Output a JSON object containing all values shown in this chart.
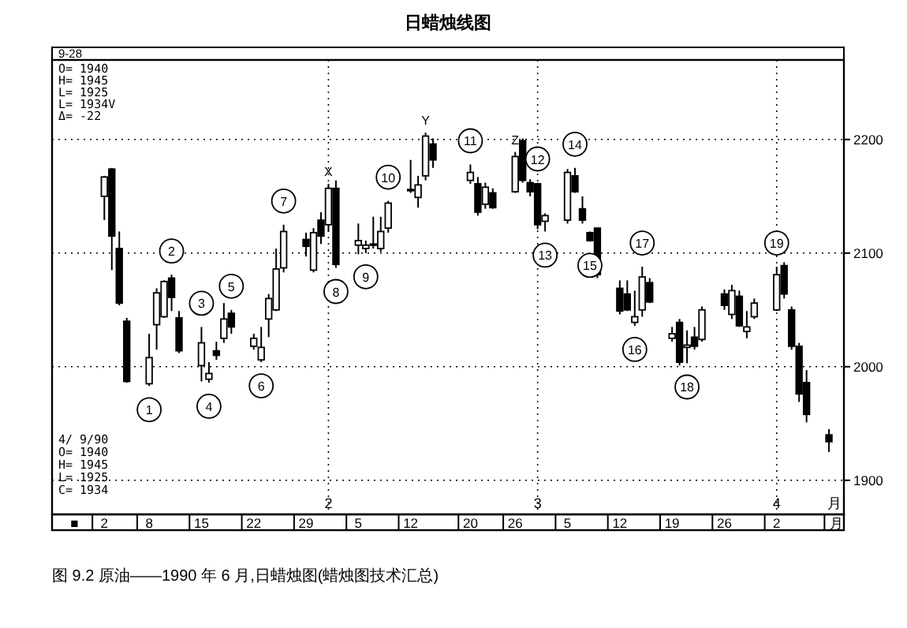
{
  "chart_data": {
    "type": "candlestick",
    "title": "日蜡烛线图",
    "xlabel": "月",
    "x": [
      "1990-01-02",
      "1990-01-03",
      "1990-01-04",
      "1990-01-05",
      "1990-01-08",
      "1990-01-09",
      "1990-01-10",
      "1990-01-11",
      "1990-01-12",
      "1990-01-15",
      "1990-01-16",
      "1990-01-17",
      "1990-01-18",
      "1990-01-19",
      "1990-01-22",
      "1990-01-23",
      "1990-01-24",
      "1990-01-25",
      "1990-01-26",
      "1990-01-29",
      "1990-01-30",
      "1990-01-31",
      "1990-02-01",
      "1990-02-02",
      "1990-02-05",
      "1990-02-06",
      "1990-02-07",
      "1990-02-08",
      "1990-02-09",
      "1990-02-12",
      "1990-02-13",
      "1990-02-14",
      "1990-02-15",
      "1990-02-20",
      "1990-02-21",
      "1990-02-22",
      "1990-02-23",
      "1990-02-26",
      "1990-02-27",
      "1990-02-28",
      "1990-03-01",
      "1990-03-02",
      "1990-03-05",
      "1990-03-06",
      "1990-03-07",
      "1990-03-08",
      "1990-03-09",
      "1990-03-12",
      "1990-03-13",
      "1990-03-14",
      "1990-03-15",
      "1990-03-16",
      "1990-03-19",
      "1990-03-20",
      "1990-03-21",
      "1990-03-22",
      "1990-03-23",
      "1990-03-26",
      "1990-03-27",
      "1990-03-28",
      "1990-03-29",
      "1990-03-30",
      "1990-04-02",
      "1990-04-03",
      "1990-04-04",
      "1990-04-05",
      "1990-04-06",
      "1990-04-09"
    ],
    "ohlc": [
      [
        2150,
        2168,
        2129,
        2167
      ],
      [
        2174,
        2175,
        2085,
        2115
      ],
      [
        2104,
        2119,
        2054,
        2056
      ],
      [
        2040,
        2043,
        1986,
        1987
      ],
      [
        1985,
        2029,
        1983,
        2008
      ],
      [
        2037,
        2069,
        2015,
        2065
      ],
      [
        2044,
        2076,
        2043,
        2075
      ],
      [
        2078,
        2081,
        2049,
        2061
      ],
      [
        2043,
        2049,
        2012,
        2014
      ],
      [
        2001,
        2035,
        1987,
        2021
      ],
      [
        1989,
        2004,
        1986,
        1994
      ],
      [
        2014,
        2022,
        2006,
        2010
      ],
      [
        2025,
        2056,
        2021,
        2042
      ],
      [
        2047,
        2050,
        2029,
        2035
      ],
      [
        2018,
        2029,
        2015,
        2025
      ],
      [
        2006,
        2035,
        2004,
        2017
      ],
      [
        2042,
        2064,
        2026,
        2060
      ],
      [
        2050,
        2104,
        2049,
        2086
      ],
      [
        2087,
        2125,
        2083,
        2119
      ],
      [
        2112,
        2118,
        2097,
        2106
      ],
      [
        2085,
        2122,
        2083,
        2118
      ],
      [
        2129,
        2136,
        2108,
        2115
      ],
      [
        2125,
        2161,
        2119,
        2157
      ],
      [
        2157,
        2164,
        2087,
        2090
      ],
      [
        2107,
        2126,
        2099,
        2111
      ],
      [
        2104,
        2111,
        2100,
        2107
      ],
      [
        2107,
        2132,
        2104,
        2108
      ],
      [
        2104,
        2132,
        2101,
        2119
      ],
      [
        2122,
        2146,
        2118,
        2144
      ],
      [
        2155,
        2182,
        2153,
        2156
      ],
      [
        2149,
        2168,
        2140,
        2160
      ],
      [
        2168,
        2206,
        2164,
        2203
      ],
      [
        2196,
        2201,
        2175,
        2182
      ],
      [
        2164,
        2178,
        2161,
        2171
      ],
      [
        2161,
        2167,
        2133,
        2136
      ],
      [
        2143,
        2162,
        2139,
        2158
      ],
      [
        2153,
        2157,
        2139,
        2140
      ],
      [
        2154,
        2189,
        2153,
        2185
      ],
      [
        2199,
        2201,
        2162,
        2164
      ],
      [
        2162,
        2165,
        2150,
        2154
      ],
      [
        2161,
        2162,
        2121,
        2125
      ],
      [
        2128,
        2135,
        2119,
        2133
      ],
      [
        2129,
        2174,
        2126,
        2171
      ],
      [
        2168,
        2175,
        2153,
        2154
      ],
      [
        2139,
        2150,
        2126,
        2129
      ],
      [
        2118,
        2119,
        2110,
        2111
      ],
      [
        2122,
        2122,
        2078,
        2081
      ],
      [
        2069,
        2076,
        2046,
        2049
      ],
      [
        2064,
        2076,
        2049,
        2050
      ],
      [
        2039,
        2067,
        2036,
        2044
      ],
      [
        2050,
        2088,
        2044,
        2079
      ],
      [
        2074,
        2078,
        2056,
        2057
      ],
      [
        2025,
        2035,
        2022,
        2029
      ],
      [
        2039,
        2042,
        2001,
        2004
      ],
      [
        2017,
        2032,
        2003,
        2019
      ],
      [
        2026,
        2035,
        2015,
        2018
      ],
      [
        2024,
        2053,
        2022,
        2050
      ],
      [
        2064,
        2068,
        2050,
        2054
      ],
      [
        2046,
        2072,
        2042,
        2067
      ],
      [
        2062,
        2067,
        2035,
        2036
      ],
      [
        2031,
        2049,
        2025,
        2035
      ],
      [
        2044,
        2060,
        2042,
        2056
      ],
      [
        2050,
        2088,
        2049,
        2081
      ],
      [
        2089,
        2092,
        2060,
        2064
      ],
      [
        2050,
        2053,
        2015,
        2018
      ],
      [
        2018,
        2021,
        1969,
        1976
      ],
      [
        1986,
        1997,
        1951,
        1958
      ],
      [
        1940,
        1945,
        1925,
        1934
      ]
    ],
    "xlim": [
      "1989-12-26",
      "1990-04-11"
    ],
    "xticks": [
      {
        "value": "1989-12-29",
        "label": "■"
      },
      {
        "value": "1990-01-02",
        "label": "2"
      },
      {
        "value": "1990-01-08",
        "label": "8"
      },
      {
        "value": "1990-01-15",
        "label": "15"
      },
      {
        "value": "1990-01-22",
        "label": "22"
      },
      {
        "value": "1990-01-29",
        "label": "29"
      },
      {
        "value": "1990-02-05",
        "label": "5"
      },
      {
        "value": "1990-02-12",
        "label": "12"
      },
      {
        "value": "1990-02-20",
        "label": "20"
      },
      {
        "value": "1990-02-26",
        "label": "26"
      },
      {
        "value": "1990-03-05",
        "label": "5"
      },
      {
        "value": "1990-03-12",
        "label": "12"
      },
      {
        "value": "1990-03-19",
        "label": "19"
      },
      {
        "value": "1990-03-26",
        "label": "26"
      },
      {
        "value": "1990-04-02",
        "label": "2"
      },
      {
        "value": "1990-04-10",
        "label": "月"
      }
    ],
    "ylim": [
      1870,
      2270
    ],
    "yticks": [
      1900,
      2000,
      2100,
      2200
    ],
    "grid": "y",
    "ref_lines": [
      {
        "axis": "x",
        "value": "1990-02-01",
        "label": "2",
        "line_style": "dotted"
      },
      {
        "axis": "x",
        "value": "1990-03-01",
        "label": "3",
        "line_style": "dotted"
      },
      {
        "axis": "x",
        "value": "1990-04-02",
        "label": "4",
        "line_style": "dotted"
      }
    ],
    "annotations": [
      "9-28",
      "O= 1940",
      "H= 1945",
      "L= 1925",
      "L= 1934V",
      "Δ= -22",
      "4/ 9/90",
      "O= 1940",
      "H= 1945",
      "L= 1925",
      "C= 1934",
      "图 9.2  原油——1990 年 6 月,日蜡烛图(蜡烛图技术汇总)",
      {
        "text": "1",
        "x": "1990-01-08",
        "y": 1983
      },
      {
        "text": "2",
        "x": "1990-01-11",
        "y": 2081
      },
      {
        "text": "3",
        "x": "1990-01-15",
        "y": 2035
      },
      {
        "text": "4",
        "x": "1990-01-16",
        "y": 1986
      },
      {
        "text": "5",
        "x": "1990-01-19",
        "y": 2050
      },
      {
        "text": "6",
        "x": "1990-01-23",
        "y": 2004
      },
      {
        "text": "7",
        "x": "1990-01-26",
        "y": 2125
      },
      {
        "text": "8",
        "x": "1990-02-02",
        "y": 2087
      },
      {
        "text": "9",
        "x": "1990-02-06",
        "y": 2100
      },
      {
        "text": "10",
        "x": "1990-02-09",
        "y": 2146
      },
      {
        "text": "11",
        "x": "1990-02-20",
        "y": 2178
      },
      {
        "text": "12",
        "x": "1990-03-01",
        "y": 2162
      },
      {
        "text": "13",
        "x": "1990-03-02",
        "y": 2119
      },
      {
        "text": "14",
        "x": "1990-03-06",
        "y": 2175
      },
      {
        "text": "15",
        "x": "1990-03-08",
        "y": 2110
      },
      {
        "text": "16",
        "x": "1990-03-14",
        "y": 2036
      },
      {
        "text": "17",
        "x": "1990-03-15",
        "y": 2088
      },
      {
        "text": "18",
        "x": "1990-03-21",
        "y": 2003
      },
      {
        "text": "19",
        "x": "1990-04-02",
        "y": 2088
      },
      {
        "text": "X",
        "x": "1990-02-01",
        "y": 2161
      },
      {
        "text": "Y",
        "x": "1990-02-14",
        "y": 2206
      },
      {
        "text": "Z",
        "x": "1990-02-26",
        "y": 2189
      }
    ]
  }
}
